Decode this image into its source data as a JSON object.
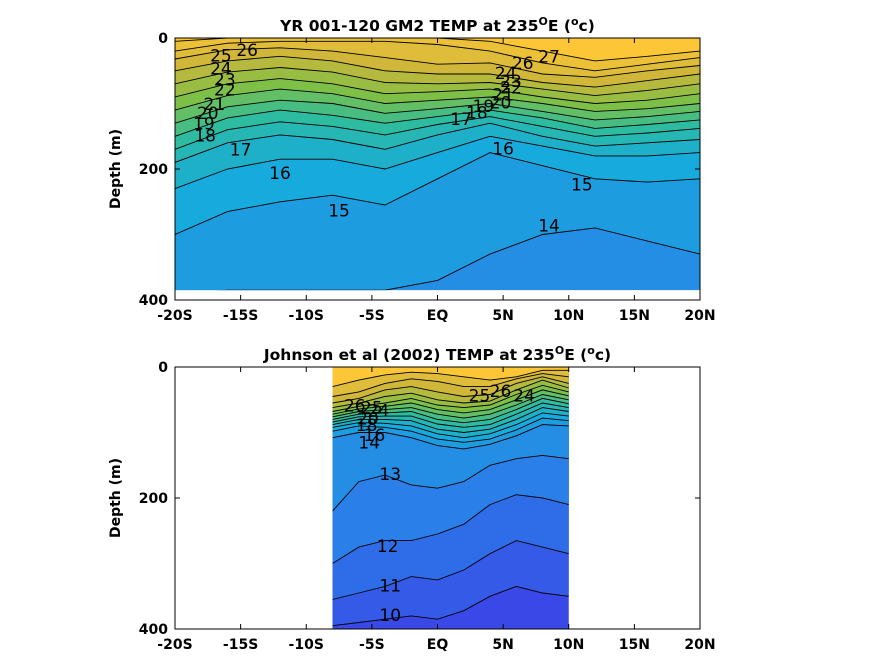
{
  "chart_data": [
    {
      "type": "heatmap",
      "title_main": "YR 001-120 GM2 TEMP at 235",
      "title_sup": "O",
      "title_end": "E (",
      "title_unit_sup": "o",
      "title_unit_end": "c)",
      "ylabel": "Depth (m)",
      "xlim": [
        -20,
        20
      ],
      "ylim": [
        0,
        400
      ],
      "y_reversed": true,
      "xticks": [
        -20,
        -15,
        -10,
        -5,
        0,
        5,
        10,
        15,
        20
      ],
      "xtick_labels": [
        "-20S",
        "-15S",
        "-10S",
        "-5S",
        "EQ",
        "5N",
        "10N",
        "15N",
        "20N"
      ],
      "yticks": [
        0,
        200,
        400
      ],
      "ytick_labels": [
        "0",
        "200",
        "400"
      ],
      "data_xrange": [
        -20,
        20
      ],
      "data_yrange": [
        0,
        385
      ],
      "colormap": [
        "#3a48e8",
        "#2a7fe8",
        "#17aadc",
        "#2dbca0",
        "#7ec047",
        "#d0b73a",
        "#fcc636"
      ],
      "color_range": [
        9,
        27
      ],
      "isotherm_levels": [
        27,
        26,
        25,
        24,
        23,
        22,
        21,
        20,
        19,
        18,
        17,
        16,
        15,
        14
      ],
      "isotherm_depths": [
        [
          5,
          0,
          0,
          0,
          0,
          0,
          5,
          20,
          35,
          28,
          20
        ],
        [
          20,
          8,
          5,
          5,
          5,
          10,
          20,
          38,
          50,
          40,
          30
        ],
        [
          32,
          18,
          15,
          20,
          30,
          40,
          38,
          55,
          60,
          50,
          42
        ],
        [
          50,
          35,
          28,
          35,
          50,
          55,
          55,
          68,
          75,
          65,
          55
        ],
        [
          70,
          52,
          45,
          52,
          68,
          70,
          68,
          78,
          88,
          80,
          70
        ],
        [
          90,
          70,
          62,
          70,
          85,
          82,
          78,
          90,
          100,
          95,
          85
        ],
        [
          110,
          88,
          78,
          85,
          100,
          95,
          90,
          100,
          112,
          108,
          100
        ],
        [
          130,
          105,
          95,
          100,
          115,
          108,
          100,
          112,
          125,
          120,
          112
        ],
        [
          150,
          122,
          110,
          118,
          130,
          120,
          110,
          122,
          138,
          132,
          125
        ],
        [
          170,
          140,
          128,
          135,
          148,
          132,
          120,
          135,
          150,
          145,
          138
        ],
        [
          190,
          160,
          148,
          155,
          170,
          148,
          130,
          150,
          165,
          160,
          155
        ],
        [
          230,
          200,
          185,
          185,
          200,
          175,
          150,
          165,
          180,
          180,
          175
        ],
        [
          300,
          265,
          250,
          240,
          255,
          215,
          175,
          195,
          215,
          220,
          215
        ],
        [
          390,
          385,
          385,
          385,
          385,
          370,
          330,
          300,
          290,
          310,
          330
        ]
      ],
      "contour_labels": [
        {
          "x": -14.5,
          "y": 20,
          "text": "26"
        },
        {
          "x": -16.5,
          "y": 28,
          "text": "25"
        },
        {
          "x": -16.5,
          "y": 48,
          "text": "24"
        },
        {
          "x": -16.2,
          "y": 65,
          "text": "23"
        },
        {
          "x": -16.2,
          "y": 80,
          "text": "22"
        },
        {
          "x": -17.0,
          "y": 102,
          "text": "21"
        },
        {
          "x": -17.5,
          "y": 116,
          "text": "20"
        },
        {
          "x": -17.8,
          "y": 132,
          "text": "19"
        },
        {
          "x": -17.7,
          "y": 150,
          "text": "18"
        },
        {
          "x": -15.0,
          "y": 172,
          "text": "17"
        },
        {
          "x": -12.0,
          "y": 208,
          "text": "16"
        },
        {
          "x": -7.5,
          "y": 265,
          "text": "15"
        },
        {
          "x": 8.5,
          "y": 30,
          "text": "27"
        },
        {
          "x": 6.5,
          "y": 40,
          "text": "26"
        },
        {
          "x": 5.2,
          "y": 55,
          "text": "24"
        },
        {
          "x": 5.6,
          "y": 67,
          "text": "23"
        },
        {
          "x": 5.6,
          "y": 77,
          "text": "22"
        },
        {
          "x": 5.0,
          "y": 88,
          "text": "21"
        },
        {
          "x": 4.8,
          "y": 100,
          "text": "20"
        },
        {
          "x": 3.5,
          "y": 105,
          "text": "19"
        },
        {
          "x": 3.0,
          "y": 115,
          "text": "18"
        },
        {
          "x": 1.8,
          "y": 125,
          "text": "17"
        },
        {
          "x": 5.0,
          "y": 170,
          "text": "16"
        },
        {
          "x": 11.0,
          "y": 225,
          "text": "15"
        },
        {
          "x": 8.5,
          "y": 288,
          "text": "14"
        }
      ]
    },
    {
      "type": "heatmap",
      "title_main": "Johnson et al (2002) TEMP at 235",
      "title_sup": "O",
      "title_end": "E (",
      "title_unit_sup": "o",
      "title_unit_end": "c)",
      "ylabel": "Depth (m)",
      "xlim": [
        -20,
        20
      ],
      "ylim": [
        0,
        400
      ],
      "y_reversed": true,
      "xticks": [
        -20,
        -15,
        -10,
        -5,
        0,
        5,
        10,
        15,
        20
      ],
      "xtick_labels": [
        "-20S",
        "-15S",
        "-10S",
        "-5S",
        "EQ",
        "5N",
        "10N",
        "15N",
        "20N"
      ],
      "yticks": [
        0,
        200,
        400
      ],
      "ytick_labels": [
        "0",
        "200",
        "400"
      ],
      "data_xrange": [
        -8,
        10
      ],
      "data_yrange": [
        0,
        400
      ],
      "colormap": [
        "#3a48e8",
        "#2a7fe8",
        "#17aadc",
        "#2dbca0",
        "#7ec047",
        "#d0b73a",
        "#fcc636"
      ],
      "color_range": [
        9,
        27
      ],
      "isotherm_levels": [
        26,
        25,
        24,
        23,
        22,
        21,
        20,
        19,
        18,
        17,
        16,
        15,
        14,
        13,
        12,
        11,
        10
      ],
      "isotherm_depths": [
        [
          30,
          20,
          12,
          8,
          10,
          15,
          20,
          15,
          5,
          5
        ],
        [
          45,
          38,
          25,
          18,
          22,
          30,
          30,
          18,
          10,
          15
        ],
        [
          55,
          48,
          35,
          30,
          38,
          45,
          42,
          25,
          15,
          25
        ],
        [
          62,
          55,
          45,
          40,
          50,
          55,
          52,
          35,
          20,
          32
        ],
        [
          68,
          60,
          55,
          48,
          58,
          62,
          58,
          42,
          28,
          38
        ],
        [
          72,
          64,
          60,
          55,
          65,
          70,
          65,
          50,
          35,
          44
        ],
        [
          76,
          68,
          65,
          62,
          72,
          78,
          72,
          58,
          42,
          50
        ],
        [
          80,
          72,
          70,
          68,
          80,
          85,
          80,
          65,
          48,
          56
        ],
        [
          84,
          76,
          75,
          75,
          87,
          92,
          88,
          72,
          55,
          62
        ],
        [
          88,
          80,
          80,
          82,
          95,
          100,
          95,
          80,
          62,
          68
        ],
        [
          92,
          85,
          86,
          90,
          102,
          108,
          102,
          88,
          70,
          75
        ],
        [
          98,
          90,
          92,
          98,
          110,
          115,
          110,
          96,
          78,
          82
        ],
        [
          108,
          100,
          100,
          108,
          120,
          125,
          118,
          105,
          88,
          90
        ],
        [
          220,
          175,
          165,
          180,
          185,
          175,
          150,
          140,
          135,
          140
        ],
        [
          300,
          275,
          265,
          265,
          255,
          240,
          210,
          195,
          200,
          210
        ],
        [
          355,
          345,
          335,
          320,
          325,
          310,
          285,
          265,
          275,
          285
        ],
        [
          395,
          390,
          385,
          380,
          385,
          372,
          350,
          335,
          345,
          350
        ]
      ],
      "contour_labels": [
        {
          "x": -6.3,
          "y": 60,
          "text": "26"
        },
        {
          "x": -5.0,
          "y": 63,
          "text": "25"
        },
        {
          "x": -4.5,
          "y": 68,
          "text": "24"
        },
        {
          "x": -5.3,
          "y": 80,
          "text": "20"
        },
        {
          "x": -5.4,
          "y": 90,
          "text": "18"
        },
        {
          "x": -4.8,
          "y": 105,
          "text": "16"
        },
        {
          "x": -5.2,
          "y": 117,
          "text": "14"
        },
        {
          "x": -3.6,
          "y": 165,
          "text": "13"
        },
        {
          "x": -3.8,
          "y": 275,
          "text": "12"
        },
        {
          "x": -3.6,
          "y": 335,
          "text": "11"
        },
        {
          "x": -3.6,
          "y": 380,
          "text": "10"
        },
        {
          "x": 3.2,
          "y": 45,
          "text": "25"
        },
        {
          "x": 4.8,
          "y": 38,
          "text": "26"
        },
        {
          "x": 6.6,
          "y": 45,
          "text": "24"
        }
      ]
    }
  ]
}
